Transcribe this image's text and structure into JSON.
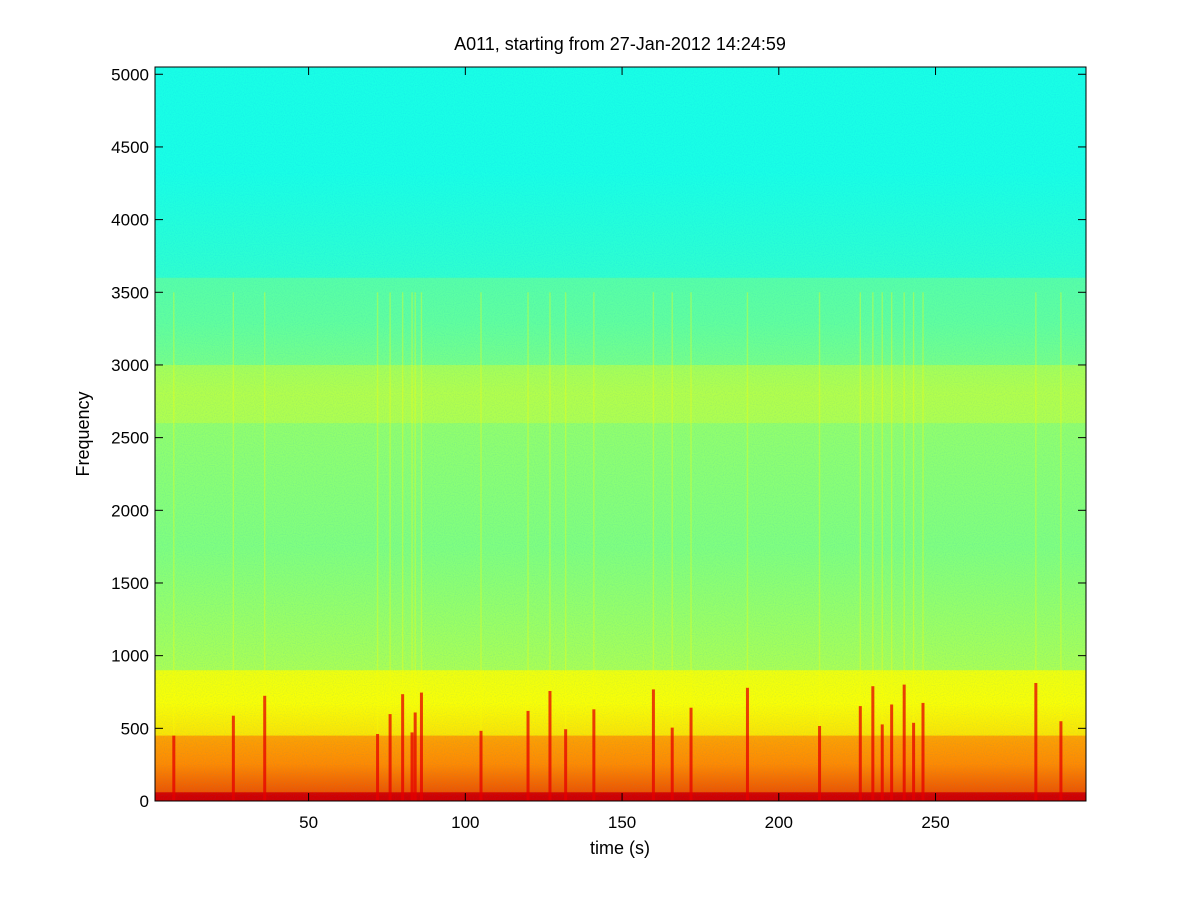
{
  "chart_data": {
    "type": "heatmap",
    "title": "A011, starting from 27-Jan-2012 14:24:59",
    "xlabel": "time (s)",
    "ylabel": "Frequency",
    "xlim": [
      1,
      298
    ],
    "ylim": [
      0,
      5050
    ],
    "x_ticks": [
      50,
      100,
      150,
      200,
      250
    ],
    "y_ticks": [
      0,
      500,
      1000,
      1500,
      2000,
      2500,
      3000,
      3500,
      4000,
      4500,
      5000
    ],
    "grid": false,
    "colormap": "jet",
    "bands": [
      {
        "f0": 0,
        "f1": 60,
        "level": 0.92
      },
      {
        "f0": 60,
        "f1": 450,
        "level": 0.74
      },
      {
        "f0": 450,
        "f1": 900,
        "level": 0.62
      },
      {
        "f0": 900,
        "f1": 2600,
        "level": 0.5
      },
      {
        "f0": 2600,
        "f1": 3000,
        "level": 0.55
      },
      {
        "f0": 3000,
        "f1": 3600,
        "level": 0.47
      },
      {
        "f0": 3600,
        "f1": 5050,
        "level": 0.4
      }
    ],
    "transients_s": [
      7,
      26,
      36,
      72,
      76,
      80,
      83,
      84,
      86,
      105,
      120,
      127,
      132,
      141,
      160,
      166,
      172,
      190,
      213,
      226,
      230,
      233,
      236,
      240,
      243,
      246,
      282,
      290
    ]
  },
  "colors": {
    "background": "#ffffff",
    "axis": "#000000"
  }
}
